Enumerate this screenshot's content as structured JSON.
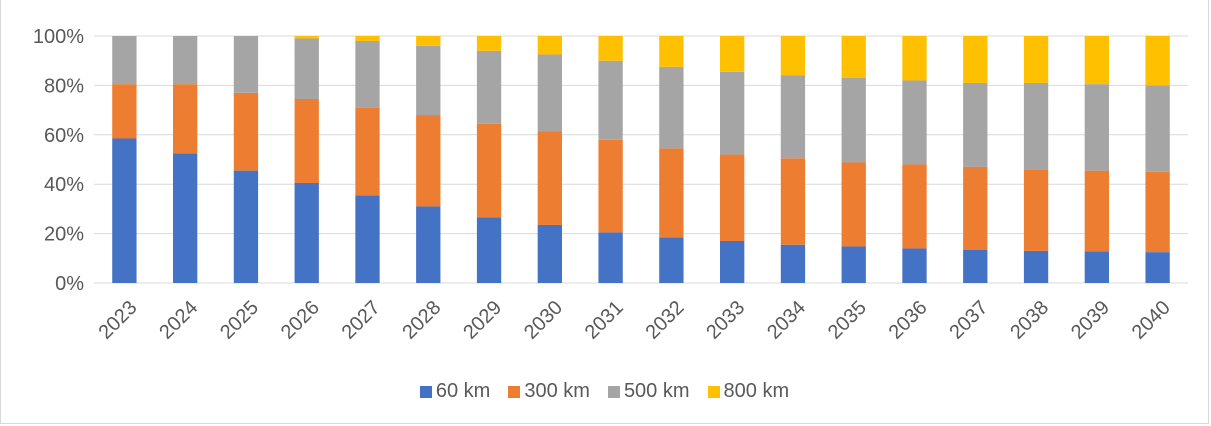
{
  "chart_data": {
    "type": "bar",
    "stacked": true,
    "percent": true,
    "categories": [
      "2023",
      "2024",
      "2025",
      "2026",
      "2027",
      "2028",
      "2029",
      "2030",
      "2031",
      "2032",
      "2033",
      "2034",
      "2035",
      "2036",
      "2037",
      "2038",
      "2039",
      "2040"
    ],
    "series": [
      {
        "name": "60 km",
        "color": "#4472C4",
        "values": [
          58.5,
          52.5,
          45.5,
          40.5,
          35.5,
          31.0,
          26.5,
          23.5,
          20.5,
          18.5,
          17.0,
          15.5,
          14.8,
          14.0,
          13.5,
          13.0,
          12.8,
          12.5
        ]
      },
      {
        "name": "300 km",
        "color": "#ED7D31",
        "values": [
          22.0,
          28.0,
          31.5,
          34.0,
          35.5,
          37.0,
          38.0,
          38.0,
          37.5,
          36.0,
          35.0,
          35.0,
          34.0,
          34.0,
          33.5,
          33.0,
          32.7,
          32.5
        ]
      },
      {
        "name": "500 km",
        "color": "#A5A5A5",
        "values": [
          19.5,
          19.5,
          23.0,
          24.5,
          27.0,
          28.0,
          29.5,
          31.0,
          32.0,
          33.0,
          33.5,
          33.5,
          34.2,
          34.0,
          34.0,
          35.0,
          35.0,
          35.0
        ]
      },
      {
        "name": "800 km",
        "color": "#FFC000",
        "values": [
          0.0,
          0.0,
          0.0,
          1.0,
          2.0,
          4.0,
          6.0,
          7.5,
          10.0,
          12.5,
          14.5,
          16.0,
          17.0,
          18.0,
          19.0,
          19.0,
          19.5,
          20.0
        ]
      }
    ],
    "yticks": [
      "0%",
      "20%",
      "40%",
      "60%",
      "80%",
      "100%"
    ],
    "ylim": [
      0,
      100
    ],
    "xlabel": "",
    "ylabel": "",
    "title": "",
    "grid": true,
    "legend": "bottom"
  }
}
